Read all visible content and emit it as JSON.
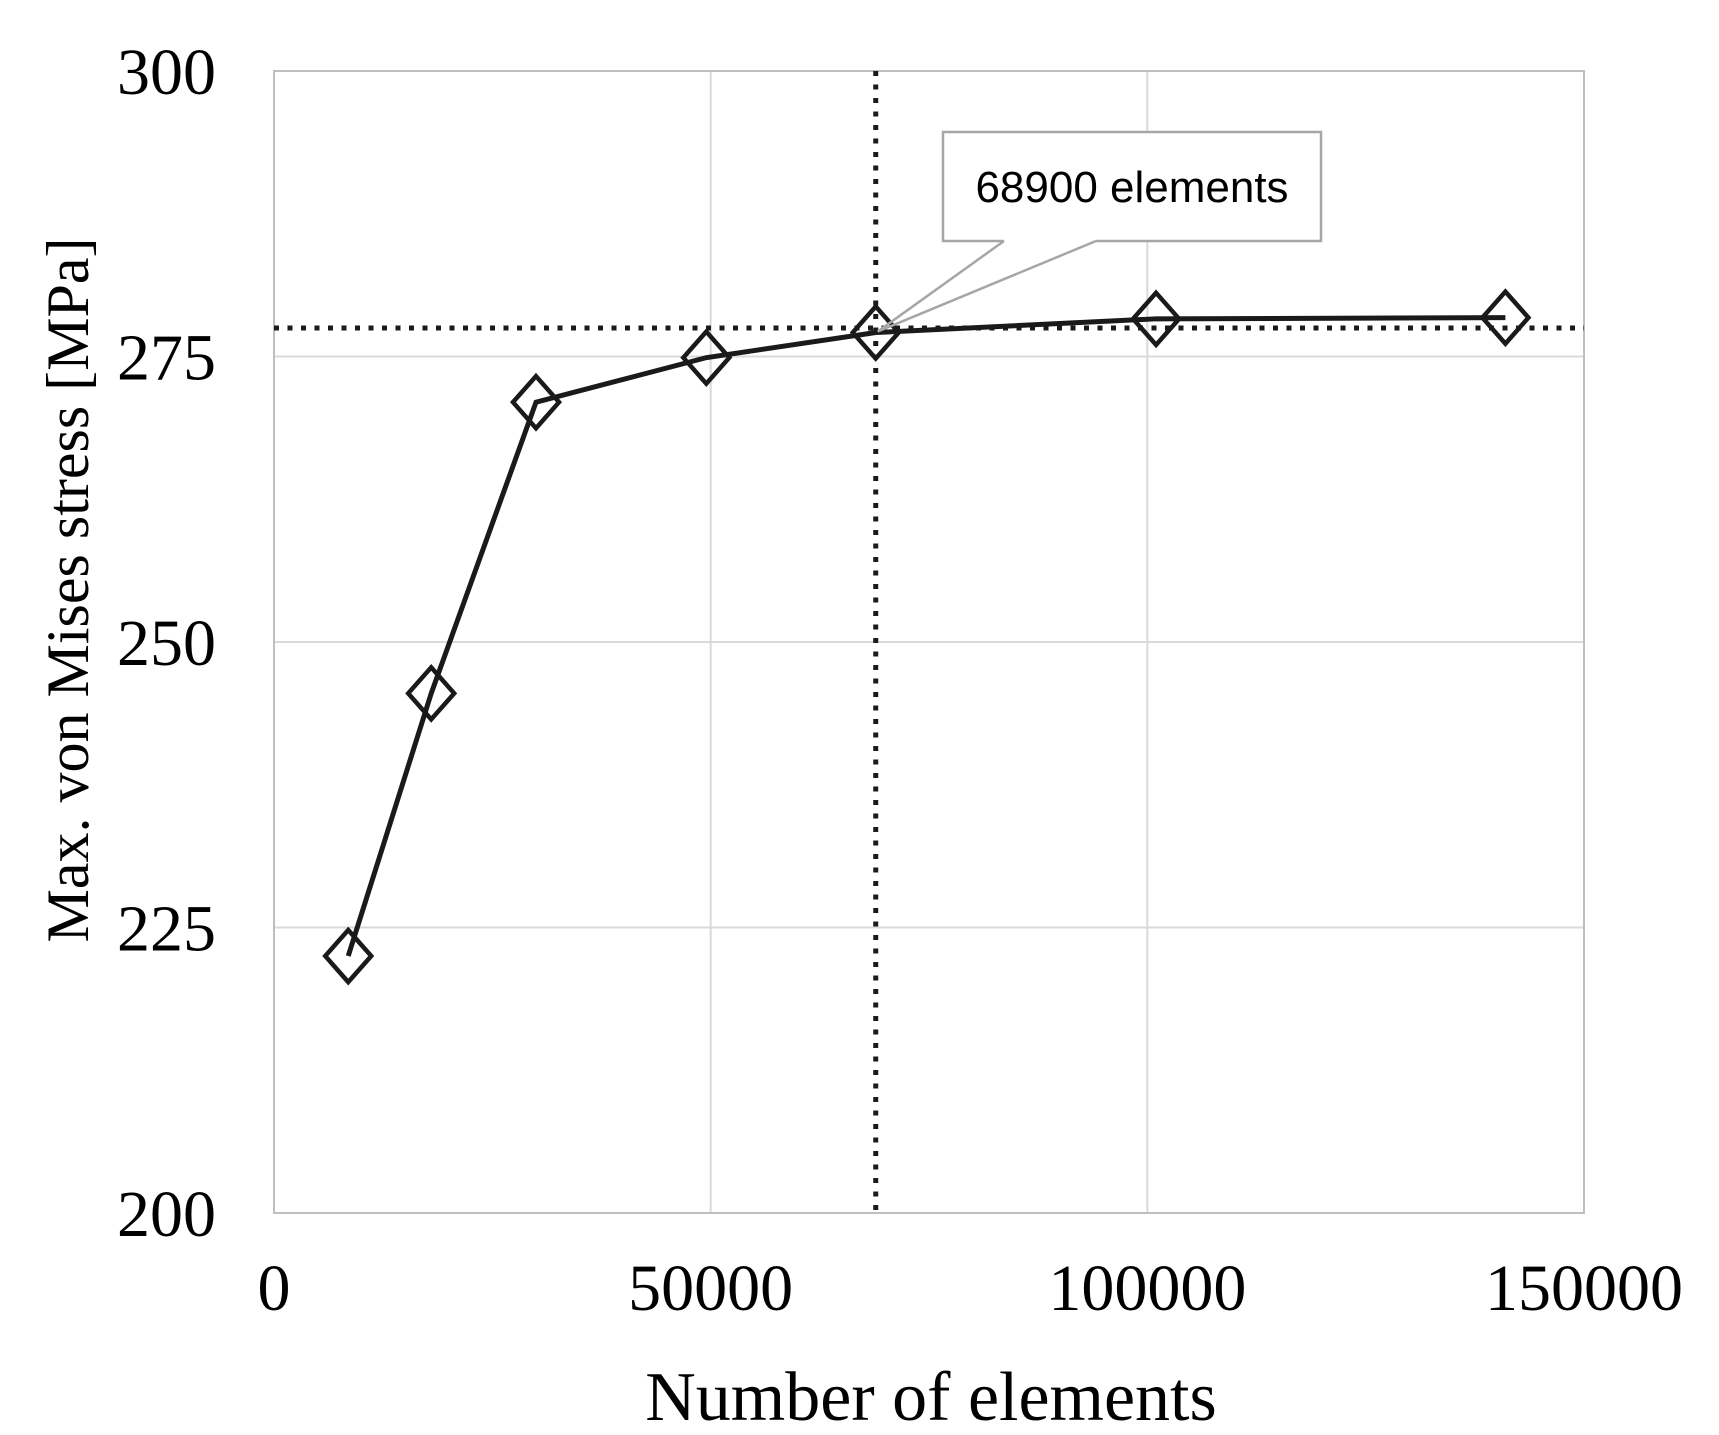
{
  "figure": {
    "background": "#ffffff"
  },
  "chart_data": {
    "type": "line",
    "title": "",
    "xlabel": "Number of elements",
    "ylabel": "Max. von Mises stress [MPa]",
    "xlim": [
      0,
      150000
    ],
    "ylim": [
      200,
      300
    ],
    "x_ticks": [
      0,
      50000,
      100000,
      150000
    ],
    "x_tick_labels": [
      "0",
      "50000",
      "100000",
      "150000"
    ],
    "y_ticks": [
      200,
      225,
      250,
      275,
      300
    ],
    "y_tick_labels": [
      "200",
      "225",
      "250",
      "275",
      "300"
    ],
    "grid": true,
    "legend": "none",
    "series": [
      {
        "name": "max-von-mises-stress",
        "marker": "diamond",
        "marker_fill": "none",
        "color": "#1a1a1a",
        "x": [
          8500,
          18000,
          30000,
          49500,
          68900,
          101000,
          141000
        ],
        "y": [
          222.5,
          245.5,
          271.0,
          274.9,
          277.1,
          278.3,
          278.4
        ]
      }
    ],
    "reference_lines": {
      "style": "dotted",
      "color": "#1a1a1a",
      "vertical_x": 68900,
      "horizontal_y": 277.5
    },
    "annotation": {
      "text": "68900 elements",
      "target_x": 68900,
      "target_y": 277.1
    }
  },
  "colors": {
    "series": "#1a1a1a",
    "gridline": "#d9d9d9",
    "plot_border": "#bfbfbf",
    "callout": "#a6a6a6",
    "text": "#000000"
  }
}
